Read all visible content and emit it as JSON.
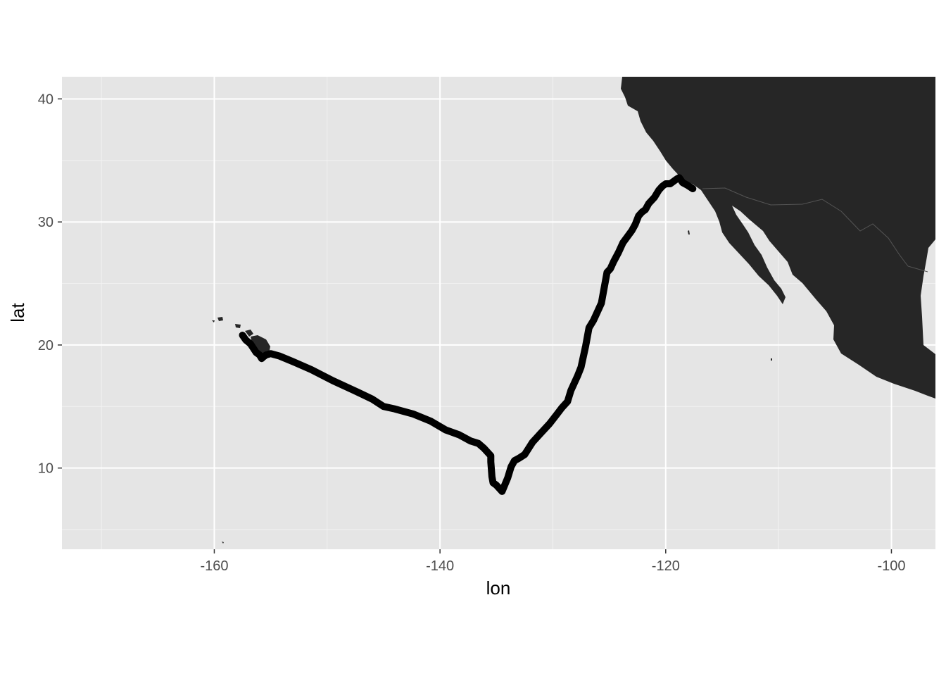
{
  "chart_data": {
    "type": "line",
    "title": "",
    "xlabel": "lon",
    "ylabel": "lat",
    "xlim": [
      -173.5,
      -96.1
    ],
    "ylim": [
      3.4,
      41.8
    ],
    "x_major_ticks": [
      -160,
      -140,
      -120,
      -100
    ],
    "x_minor_ticks": [
      -170,
      -150,
      -130,
      -110
    ],
    "y_major_ticks": [
      10,
      20,
      30,
      40
    ],
    "y_minor_ticks": [
      5,
      15,
      25,
      35
    ],
    "x_tick_labels": [
      "-160",
      "-140",
      "-120",
      "-100"
    ],
    "y_tick_labels": [
      "10",
      "20",
      "30",
      "40"
    ],
    "grid": true,
    "panel_background": "#e5e5e5",
    "grid_color": "#ffffff",
    "land_color": "#262626",
    "track_color": "#000000",
    "series": [
      {
        "x": [
          -117.6,
          -118.1,
          -118.5,
          -118.8,
          -119.0,
          -119.3,
          -119.6,
          -120.0,
          -120.3,
          -120.6,
          -121.0,
          -121.5,
          -121.8,
          -122.1,
          -122.4,
          -122.7,
          -123.0,
          -123.4,
          -123.8,
          -124.2,
          -124.6,
          -124.9,
          -125.2,
          -125.5,
          -125.7,
          -126.0,
          -126.4,
          -126.8,
          -127.1,
          -127.5,
          -127.8,
          -128.1,
          -128.4,
          -128.7,
          -129.2,
          -129.7,
          -130.3,
          -131.0,
          -131.8,
          -132.5,
          -133.0,
          -133.4,
          -133.7,
          -134.0,
          -134.5,
          -135.0,
          -135.3,
          -135.4,
          -135.5,
          -135.5,
          -136.1,
          -136.6,
          -137.3,
          -138.3,
          -139.5,
          -140.8,
          -142.4,
          -144.0,
          -145.0,
          -146.0,
          -147.6,
          -149.5,
          -151.4,
          -152.9,
          -154.2,
          -155.0,
          -155.4,
          -155.7,
          -155.8,
          -156.0,
          -156.3,
          -156.8,
          -157.2,
          -157.5
        ],
        "y": [
          32.7,
          33.0,
          33.2,
          33.6,
          33.5,
          33.3,
          33.1,
          33.1,
          32.9,
          32.6,
          32.0,
          31.5,
          31.0,
          30.8,
          30.5,
          29.8,
          29.3,
          28.8,
          28.3,
          27.5,
          26.8,
          26.2,
          25.9,
          24.4,
          23.4,
          22.8,
          22.0,
          21.4,
          19.9,
          18.2,
          17.5,
          16.9,
          16.3,
          15.4,
          14.9,
          14.3,
          13.6,
          12.9,
          12.1,
          11.1,
          10.8,
          10.6,
          10.1,
          9.2,
          8.1,
          8.6,
          8.8,
          9.3,
          10.5,
          11.0,
          11.6,
          12.0,
          12.2,
          12.7,
          13.1,
          13.8,
          14.4,
          14.8,
          15.0,
          15.6,
          16.3,
          17.1,
          18.0,
          18.6,
          19.1,
          19.3,
          19.2,
          19.0,
          18.9,
          19.2,
          19.4,
          20.1,
          20.4,
          20.8
        ]
      }
    ]
  }
}
